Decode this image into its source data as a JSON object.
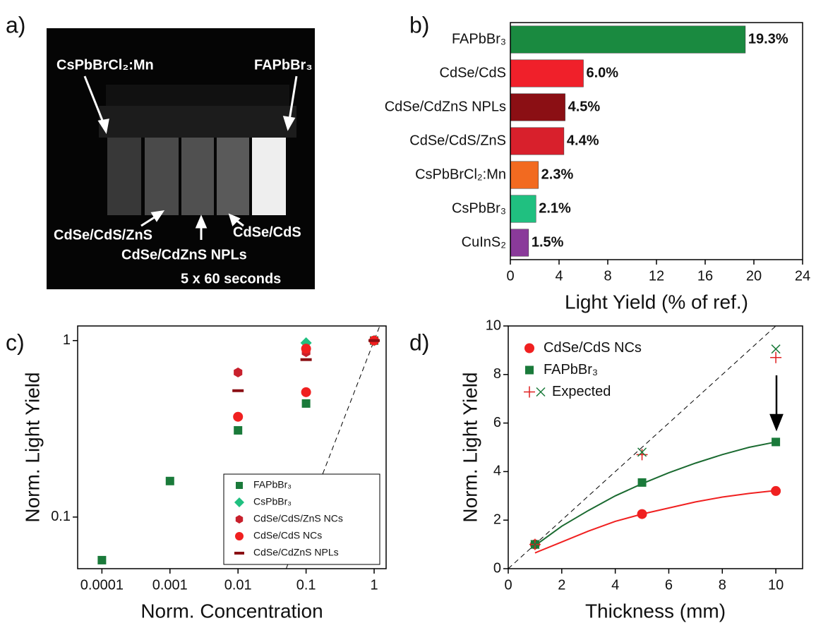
{
  "photo": {
    "label": "a)",
    "labels": [
      "CsPbBrCl₂:Mn",
      "FAPbBr₃",
      "CdSe/CdS/ZnS",
      "CdSe/CdS",
      "CdSe/CdZnS NPLs"
    ],
    "caption": "5 x 60 seconds"
  },
  "chart_data": [
    {
      "type": "bar",
      "orientation": "horizontal",
      "label": "b)",
      "categories": [
        "FAPbBr₃",
        "CdSe/CdS",
        "CdSe/CdZnS NPLs",
        "CdSe/CdS/ZnS",
        "CsPbBrCl₂:Mn",
        "CsPbBr₃",
        "CuInS₂"
      ],
      "values": [
        19.3,
        6.0,
        4.5,
        4.4,
        2.3,
        2.1,
        1.5
      ],
      "value_labels": [
        "19.3%",
        "6.0%",
        "4.5%",
        "4.4%",
        "2.3%",
        "2.1%",
        "1.5%"
      ],
      "colors": [
        "#1a8a40",
        "#f0202a",
        "#8b0f14",
        "#d8202c",
        "#f26a20",
        "#20c080",
        "#8a3a9a"
      ],
      "xlabel": "Light Yield (% of ref.)",
      "xlim": [
        0,
        24
      ],
      "xticks": [
        0,
        4,
        8,
        12,
        16,
        20,
        24
      ]
    },
    {
      "type": "scatter",
      "label": "c)",
      "xscale": "log",
      "yscale": "log",
      "xlabel": "Norm. Concentration",
      "ylabel": "Norm. Light Yield",
      "xlim": [
        4.4e-05,
        1.5
      ],
      "ylim": [
        0.051,
        1.21
      ],
      "xticks": [
        0.0001,
        0.001,
        0.01,
        0.1,
        1
      ],
      "yticks": [
        0.1,
        1
      ],
      "legend": "lower right",
      "series": [
        {
          "name": "FAPbBr₃",
          "marker": "square",
          "color": "#1a7a3a",
          "x": [
            0.0001,
            0.001,
            0.01,
            0.1,
            1
          ],
          "values": [
            0.057,
            0.16,
            0.31,
            0.44,
            1
          ]
        },
        {
          "name": "CsPbBr₃",
          "marker": "diamond",
          "color": "#20c080",
          "x": [
            0.1,
            1
          ],
          "values": [
            0.97,
            1
          ]
        },
        {
          "name": "CdSe/CdS/ZnS NCs",
          "marker": "hexagon",
          "color": "#c8202c",
          "x": [
            0.01,
            0.1,
            1
          ],
          "values": [
            0.66,
            0.86,
            1
          ]
        },
        {
          "name": "CdSe/CdS NCs",
          "marker": "circle",
          "color": "#f02020",
          "x": [
            0.01,
            0.1,
            0.1,
            1
          ],
          "values": [
            0.37,
            0.51,
            0.9,
            1
          ]
        },
        {
          "name": "CdSe/CdZnS NPLs",
          "marker": "dash",
          "color": "#8b0f14",
          "x": [
            0.01,
            0.1,
            1
          ],
          "values": [
            0.52,
            0.78,
            1
          ]
        }
      ],
      "reference_line": {
        "x": [
          0.051,
          1.21
        ],
        "y": [
          0.051,
          1.21
        ]
      }
    },
    {
      "type": "scatter",
      "label": "d)",
      "xlabel": "Thickness (mm)",
      "ylabel": "Norm. Light Yield",
      "xlim": [
        0,
        11
      ],
      "ylim": [
        0,
        10
      ],
      "xticks": [
        0,
        2,
        4,
        6,
        8,
        10
      ],
      "yticks": [
        0,
        2,
        4,
        6,
        8,
        10
      ],
      "legend": "upper left",
      "series": [
        {
          "name": "CdSe/CdS NCs",
          "marker": "circle",
          "color": "#f02020",
          "x": [
            1,
            5,
            10
          ],
          "values": [
            1.0,
            2.25,
            3.2
          ]
        },
        {
          "name": "FAPbBr₃",
          "marker": "square",
          "color": "#1a7a3a",
          "x": [
            1,
            5,
            10
          ],
          "values": [
            1.0,
            3.55,
            5.22
          ]
        },
        {
          "name": "Expected",
          "marker": "plus",
          "color": "#e02020",
          "x": [
            1,
            5,
            10
          ],
          "values": [
            1.0,
            4.7,
            8.7
          ]
        },
        {
          "marker": "x",
          "color": "#1a7a3a",
          "x": [
            1,
            5,
            10
          ],
          "values": [
            1.0,
            4.8,
            9.05
          ]
        }
      ],
      "fits": [
        {
          "color": "#1a6a30",
          "x": [
            1,
            2,
            3,
            4,
            5,
            6,
            7,
            8,
            9,
            10
          ],
          "y": [
            0.95,
            1.75,
            2.4,
            3.0,
            3.5,
            3.95,
            4.35,
            4.7,
            5.0,
            5.22
          ]
        },
        {
          "color": "#f02020",
          "x": [
            1,
            2,
            3,
            4,
            5,
            6,
            7,
            8,
            9,
            10
          ],
          "y": [
            0.65,
            1.1,
            1.55,
            1.95,
            2.25,
            2.5,
            2.75,
            2.95,
            3.1,
            3.22
          ]
        }
      ],
      "reference_line": {
        "x": [
          0,
          10
        ],
        "y": [
          0,
          10
        ]
      }
    }
  ]
}
